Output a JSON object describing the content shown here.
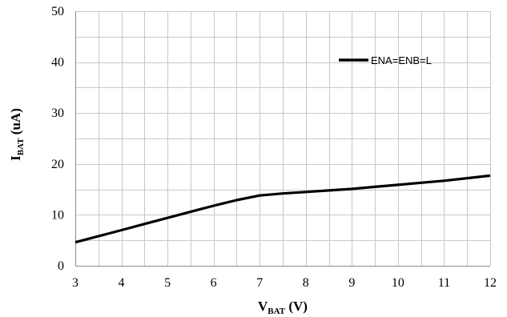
{
  "chart_data": {
    "type": "line",
    "xlabel": "V",
    "xlabel_sub": "BAT",
    "xlabel_unit": " (V)",
    "ylabel": "I",
    "ylabel_sub": "BAT",
    "ylabel_unit": " (uA)",
    "xlim": [
      3,
      12
    ],
    "ylim": [
      0,
      50
    ],
    "x_ticks": [
      3,
      4,
      5,
      6,
      7,
      8,
      9,
      10,
      11,
      12
    ],
    "y_ticks": [
      0,
      10,
      20,
      30,
      40,
      50
    ],
    "x_minor_step": 0.5,
    "y_minor_step": 5,
    "grid": true,
    "legend_position": "top-right",
    "series": [
      {
        "name": "ENA=ENB=L",
        "color": "#000000",
        "x": [
          3,
          3.5,
          4,
          4.5,
          5,
          5.5,
          6,
          6.5,
          7,
          7.5,
          8,
          8.5,
          9,
          9.5,
          10,
          10.5,
          11,
          11.5,
          12
        ],
        "y": [
          4.6,
          5.8,
          7.0,
          8.2,
          9.4,
          10.6,
          11.8,
          12.9,
          13.8,
          14.2,
          14.5,
          14.8,
          15.1,
          15.5,
          15.9,
          16.3,
          16.7,
          17.2,
          17.7
        ]
      }
    ]
  }
}
